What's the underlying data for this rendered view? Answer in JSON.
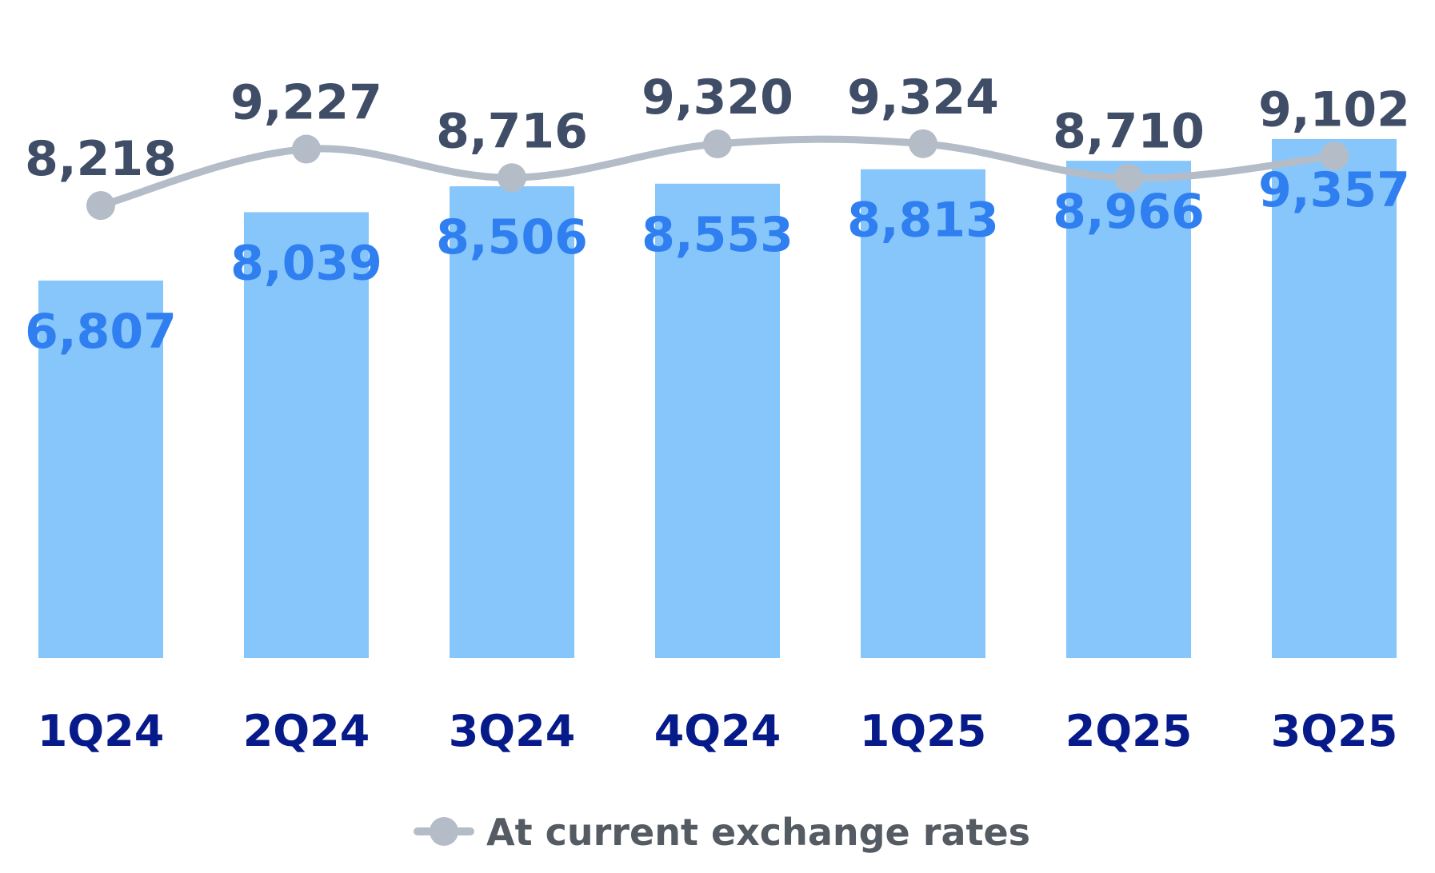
{
  "chart_data": {
    "type": "bar",
    "categories": [
      "1Q24",
      "2Q24",
      "3Q24",
      "4Q24",
      "1Q25",
      "2Q25",
      "3Q25"
    ],
    "series": [
      {
        "type": "bar",
        "values": [
          6807,
          8039,
          8506,
          8553,
          8813,
          8966,
          9357
        ],
        "labels": [
          "6,807",
          "8,039",
          "8,506",
          "8,553",
          "8,813",
          "8,966",
          "9,357"
        ]
      },
      {
        "type": "line",
        "name": "At current exchange rates",
        "values": [
          8218,
          9227,
          8716,
          9320,
          9324,
          8710,
          9102
        ],
        "labels": [
          "8,218",
          "9,227",
          "8,716",
          "9,320",
          "9,324",
          "8,710",
          "9,102"
        ]
      }
    ],
    "title": "",
    "xlabel": "",
    "ylabel": "",
    "ylim": [
      0,
      10000
    ],
    "grid": false,
    "legend": {
      "placement": "bottom-center",
      "entries": [
        "At current exchange rates"
      ]
    }
  },
  "colors": {
    "bar": "#87c6fb",
    "bar_label": "#2f7ff0",
    "line": "#b4bcc7",
    "line_label": "#3f4d66",
    "tick_label": "#071a8a",
    "legend_text": "#555b63"
  }
}
